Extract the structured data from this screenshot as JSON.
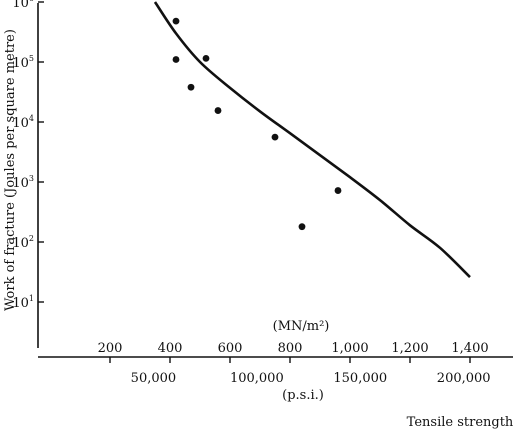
{
  "chart_data": {
    "type": "scatter",
    "title": "",
    "ylabel": "Work of fracture (Joules per square metre)",
    "y_scale": "log",
    "y_ticks": [
      {
        "value": 10,
        "base": "10",
        "exp": "1"
      },
      {
        "value": 100,
        "base": "10",
        "exp": "2"
      },
      {
        "value": 1000,
        "base": "10",
        "exp": "3"
      },
      {
        "value": 10000,
        "base": "10",
        "exp": "4"
      },
      {
        "value": 100000,
        "base": "10",
        "exp": "5"
      },
      {
        "value": 1000000,
        "base": "10",
        "exp": "6"
      }
    ],
    "xlabel": "Tensile strength",
    "x_axis_upper": {
      "unit_label": "(MN/m²)",
      "ticks": [
        {
          "value": 200,
          "label": "200"
        },
        {
          "value": 400,
          "label": "400"
        },
        {
          "value": 600,
          "label": "600"
        },
        {
          "value": 800,
          "label": "800"
        },
        {
          "value": 1000,
          "label": "1,000"
        },
        {
          "value": 1200,
          "label": "1,200"
        },
        {
          "value": 1400,
          "label": "1,400"
        }
      ]
    },
    "x_axis_lower": {
      "unit_label": "(p.s.i.)",
      "ticks": [
        {
          "value": 50000,
          "label": "50,000"
        },
        {
          "value": 100000,
          "label": "100,000"
        },
        {
          "value": 150000,
          "label": "150,000"
        },
        {
          "value": 200000,
          "label": "200,000"
        }
      ]
    },
    "xlim": [
      50,
      1600
    ],
    "ylim": [
      3,
      1000000
    ],
    "series": [
      {
        "type": "scatter",
        "x": [
          420,
          420,
          470,
          520,
          560,
          750,
          840,
          960
        ],
        "y": [
          480000,
          110000,
          38000,
          115000,
          15500,
          5600,
          180,
          720
        ]
      },
      {
        "type": "line",
        "x": [
          350,
          420,
          500,
          600,
          700,
          800,
          900,
          1000,
          1100,
          1200,
          1300,
          1400
        ],
        "y": [
          1000000,
          300000,
          100000,
          37000,
          15000,
          6500,
          2800,
          1200,
          500,
          190,
          80,
          26
        ]
      }
    ]
  }
}
